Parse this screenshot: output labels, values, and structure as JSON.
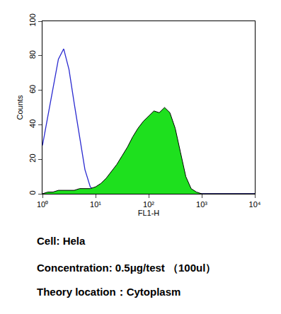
{
  "chart_data": {
    "type": "line",
    "x_label": "FL1-H",
    "y_label": "Counts",
    "x": [
      1,
      1.259,
      1.585,
      1.995,
      2.512,
      3.162,
      3.981,
      5.012,
      6.31,
      7.943,
      10,
      12.59,
      15.85,
      19.95,
      25.12,
      31.62,
      39.81,
      50.12,
      63.1,
      79.43,
      100,
      125.9,
      158.5,
      199.5,
      251.2,
      316.2,
      398.1,
      501.2,
      631,
      794.3,
      1000,
      1259,
      1585,
      1995,
      2512,
      3162,
      3981,
      5012,
      6310,
      7943,
      10000
    ],
    "series": [
      {
        "type": "line",
        "color": "#2a2ad0",
        "values": [
          28,
          45,
          62,
          78,
          84,
          72,
          52,
          32,
          14,
          4,
          1,
          0,
          0,
          0,
          0,
          0,
          0,
          0,
          0,
          0,
          0,
          0,
          0,
          0,
          0,
          0,
          0,
          0,
          0,
          0,
          0,
          0,
          0,
          0,
          0,
          0,
          0,
          0,
          0,
          0,
          0
        ]
      },
      {
        "type": "area",
        "color": "#1ee01e",
        "values": [
          0,
          1,
          1,
          2,
          2,
          2,
          2,
          3,
          3,
          3,
          4,
          6,
          9,
          13,
          17,
          22,
          27,
          33,
          38,
          42,
          45,
          48,
          47,
          50,
          47,
          38,
          24,
          10,
          3,
          1,
          0,
          0,
          0,
          0,
          0,
          0,
          0,
          0,
          0,
          0,
          0
        ]
      }
    ],
    "log": "x",
    "xlim": [
      1,
      10000
    ],
    "xticks": [
      {
        "value": 1,
        "label": "10⁰"
      },
      {
        "value": 10,
        "label": "10¹"
      },
      {
        "value": 100,
        "label": "10²"
      },
      {
        "value": 1000,
        "label": "10³"
      },
      {
        "value": 10000,
        "label": "10⁴"
      }
    ],
    "ylim": [
      0,
      100
    ],
    "yticks": [
      0,
      20,
      40,
      60,
      80,
      100
    ],
    "grid": false,
    "annotations": [
      "Cell: Hela",
      "Concentration: 0.5μg/test （100ul）",
      "Theory location：Cytoplasm"
    ]
  }
}
